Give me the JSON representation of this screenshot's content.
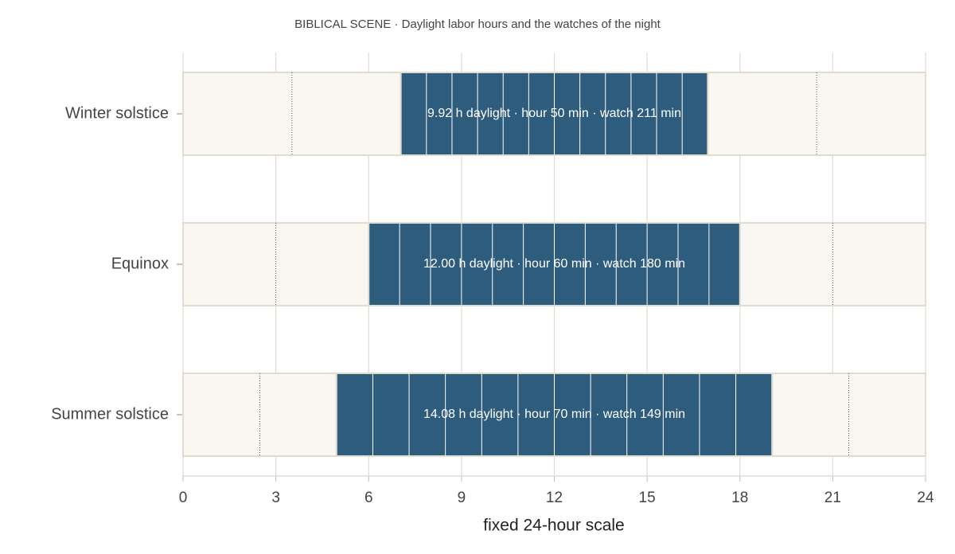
{
  "chart_data": {
    "type": "daylight-bars",
    "title": "BIBLICAL SCENE · Daylight labor hours and the watches of the night",
    "xlabel": "fixed 24-hour scale",
    "xlim": [
      0,
      24
    ],
    "xticks": [
      0,
      3,
      6,
      9,
      12,
      15,
      18,
      21,
      24
    ],
    "grid": true,
    "day_color": "#2e5c7c",
    "night_color": "#f8f7f2",
    "rows": [
      {
        "name": "Winter solstice",
        "sunrise": 7.04,
        "sunset": 16.96,
        "watch_lines": [
          3.52,
          20.48
        ],
        "label": "9.92 h daylight · hour 50 min · watch 211 min"
      },
      {
        "name": "Equinox",
        "sunrise": 6,
        "sunset": 18,
        "watch_lines": [
          3,
          21
        ],
        "label": "12.00 h daylight · hour 60 min · watch 180 min"
      },
      {
        "name": "Summer solstice",
        "sunrise": 4.96,
        "sunset": 19.04,
        "watch_lines": [
          2.48,
          21.52
        ],
        "label": "14.08 h daylight · hour 70 min · watch 149 min"
      }
    ]
  }
}
